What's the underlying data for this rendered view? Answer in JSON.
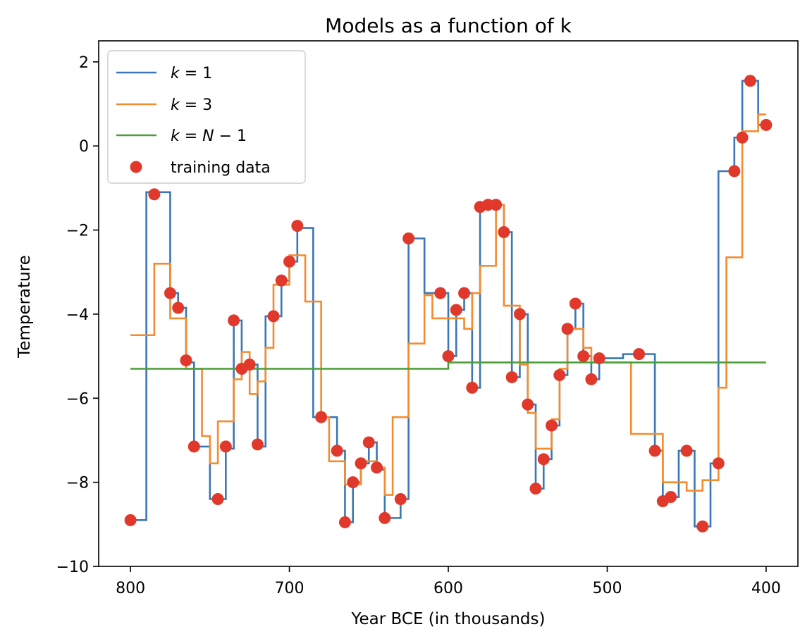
{
  "chart_data": {
    "type": "line",
    "title": "Models as a function of k",
    "xlabel": "Year BCE (in thousands)",
    "ylabel": "Temperature",
    "xlim": [
      820,
      380
    ],
    "ylim": [
      -10,
      2.5
    ],
    "x_ticks": [
      800,
      700,
      600,
      500,
      400
    ],
    "y_ticks": [
      2,
      0,
      -2,
      -4,
      -6,
      -8,
      -10
    ],
    "x_tick_labels": [
      "800",
      "700",
      "600",
      "500",
      "400"
    ],
    "y_tick_labels": [
      "2",
      "0",
      "−2",
      "−4",
      "−6",
      "−8",
      "−10"
    ],
    "legend_position": "upper-left",
    "grid": false,
    "series": [
      {
        "name": "k = 1",
        "name_parts": [
          "k",
          " = 1"
        ],
        "kind": "step",
        "color": "#3a77b4",
        "x": [
          800,
          795,
          790,
          785,
          780,
          775,
          770,
          765,
          760,
          755,
          750,
          745,
          740,
          735,
          730,
          725,
          720,
          715,
          710,
          705,
          700,
          695,
          690,
          685,
          680,
          675,
          670,
          665,
          660,
          655,
          650,
          645,
          640,
          635,
          630,
          625,
          620,
          615,
          610,
          605,
          600,
          595,
          590,
          585,
          580,
          575,
          570,
          565,
          560,
          555,
          550,
          545,
          540,
          535,
          530,
          525,
          520,
          515,
          510,
          505,
          500,
          495,
          490,
          485,
          480,
          475,
          470,
          465,
          460,
          455,
          450,
          445,
          440,
          435,
          430,
          425,
          420,
          415,
          410,
          405,
          400
        ],
        "y": [
          -8.9,
          -8.9,
          -1.1,
          -1.1,
          -1.1,
          -3.5,
          -3.85,
          -5.15,
          -7.15,
          -7.15,
          -8.4,
          -8.4,
          -7.2,
          -4.15,
          -5.3,
          -5.2,
          -7.15,
          -4.05,
          -4.05,
          -3.2,
          -2.75,
          -1.95,
          -1.95,
          -6.45,
          -6.45,
          -6.45,
          -7.25,
          -8.95,
          -8.0,
          -7.55,
          -7.05,
          -7.7,
          -8.85,
          -8.85,
          -8.4,
          -2.2,
          -2.2,
          -3.5,
          -3.5,
          -3.5,
          -5.0,
          -3.9,
          -3.5,
          -5.75,
          -1.45,
          -1.4,
          -1.4,
          -2.05,
          -5.5,
          -4.0,
          -6.15,
          -8.15,
          -7.45,
          -6.65,
          -5.45,
          -4.35,
          -3.75,
          -5.0,
          -5.55,
          -5.05,
          -5.05,
          -5.05,
          -4.95,
          -4.95,
          -4.95,
          -4.95,
          -7.25,
          -8.45,
          -8.35,
          -7.25,
          -7.25,
          -9.05,
          -9.05,
          -7.55,
          -0.6,
          -0.6,
          0.2,
          1.55,
          1.55,
          0.5,
          0.5
        ]
      },
      {
        "name": "k = 3",
        "name_parts": [
          "k",
          " = 3"
        ],
        "kind": "step",
        "color": "#f28c2f",
        "x": [
          800,
          795,
          790,
          785,
          780,
          775,
          770,
          765,
          760,
          755,
          750,
          745,
          740,
          735,
          730,
          725,
          720,
          715,
          710,
          705,
          700,
          695,
          690,
          685,
          680,
          675,
          670,
          665,
          660,
          655,
          650,
          645,
          640,
          635,
          630,
          625,
          620,
          615,
          610,
          605,
          600,
          595,
          590,
          585,
          580,
          575,
          570,
          565,
          560,
          555,
          550,
          545,
          540,
          535,
          530,
          525,
          520,
          515,
          510,
          505,
          500,
          495,
          490,
          485,
          480,
          475,
          470,
          465,
          460,
          455,
          450,
          445,
          440,
          435,
          430,
          425,
          420,
          415,
          410,
          405,
          400
        ],
        "y": [
          -4.5,
          -4.5,
          -4.5,
          -2.8,
          -2.8,
          -4.1,
          -4.1,
          -5.3,
          -5.3,
          -6.9,
          -7.55,
          -6.55,
          -6.55,
          -5.55,
          -4.9,
          -5.9,
          -5.6,
          -4.8,
          -3.3,
          -3.3,
          -2.6,
          -2.6,
          -3.7,
          -3.7,
          -6.45,
          -7.5,
          -7.5,
          -8.05,
          -8.05,
          -7.5,
          -7.5,
          -7.65,
          -8.3,
          -6.45,
          -6.45,
          -4.7,
          -4.7,
          -3.55,
          -4.1,
          -4.1,
          -4.1,
          -4.1,
          -4.35,
          -3.5,
          -2.85,
          -2.85,
          -1.4,
          -3.8,
          -3.8,
          -5.2,
          -6.35,
          -7.2,
          -7.2,
          -6.5,
          -5.3,
          -4.35,
          -4.35,
          -4.8,
          -5.15,
          -5.15,
          -5.15,
          -5.15,
          -5.15,
          -6.85,
          -6.85,
          -6.85,
          -6.85,
          -8.0,
          -8.0,
          -8.0,
          -8.2,
          -8.2,
          -7.95,
          -7.95,
          -5.75,
          -2.65,
          -2.65,
          0.35,
          0.35,
          0.75,
          0.75
        ]
      },
      {
        "name": "k = N − 1",
        "name_parts": [
          "k",
          " = ",
          "N",
          " − 1"
        ],
        "kind": "step",
        "color": "#4c9e3a",
        "x": [
          800,
          600,
          400
        ],
        "y": [
          -5.3,
          -5.15,
          -5.15
        ]
      }
    ],
    "scatter": {
      "name": "training data",
      "color": "#e0392b",
      "x": [
        800,
        785,
        775,
        770,
        765,
        760,
        745,
        740,
        735,
        730,
        725,
        720,
        710,
        705,
        700,
        695,
        680,
        670,
        665,
        660,
        655,
        650,
        645,
        640,
        630,
        625,
        605,
        600,
        595,
        590,
        585,
        580,
        575,
        570,
        565,
        560,
        555,
        550,
        545,
        540,
        535,
        530,
        525,
        520,
        515,
        510,
        505,
        480,
        470,
        465,
        460,
        450,
        440,
        430,
        420,
        415,
        410,
        400
      ],
      "y": [
        -8.9,
        -1.15,
        -3.5,
        -3.85,
        -5.1,
        -7.15,
        -8.4,
        -7.15,
        -4.15,
        -5.3,
        -5.2,
        -7.1,
        -4.05,
        -3.2,
        -2.75,
        -1.9,
        -6.45,
        -7.25,
        -8.95,
        -8.0,
        -7.55,
        -7.05,
        -7.65,
        -8.85,
        -8.4,
        -2.2,
        -3.5,
        -5.0,
        -3.9,
        -3.5,
        -5.75,
        -1.45,
        -1.4,
        -1.4,
        -2.05,
        -5.5,
        -4.0,
        -6.15,
        -8.15,
        -7.45,
        -6.65,
        -5.45,
        -4.35,
        -3.75,
        -5.0,
        -5.55,
        -5.05,
        -4.95,
        -7.25,
        -8.45,
        -8.35,
        -7.25,
        -9.05,
        -7.55,
        -0.6,
        0.2,
        1.55,
        0.5
      ]
    }
  }
}
